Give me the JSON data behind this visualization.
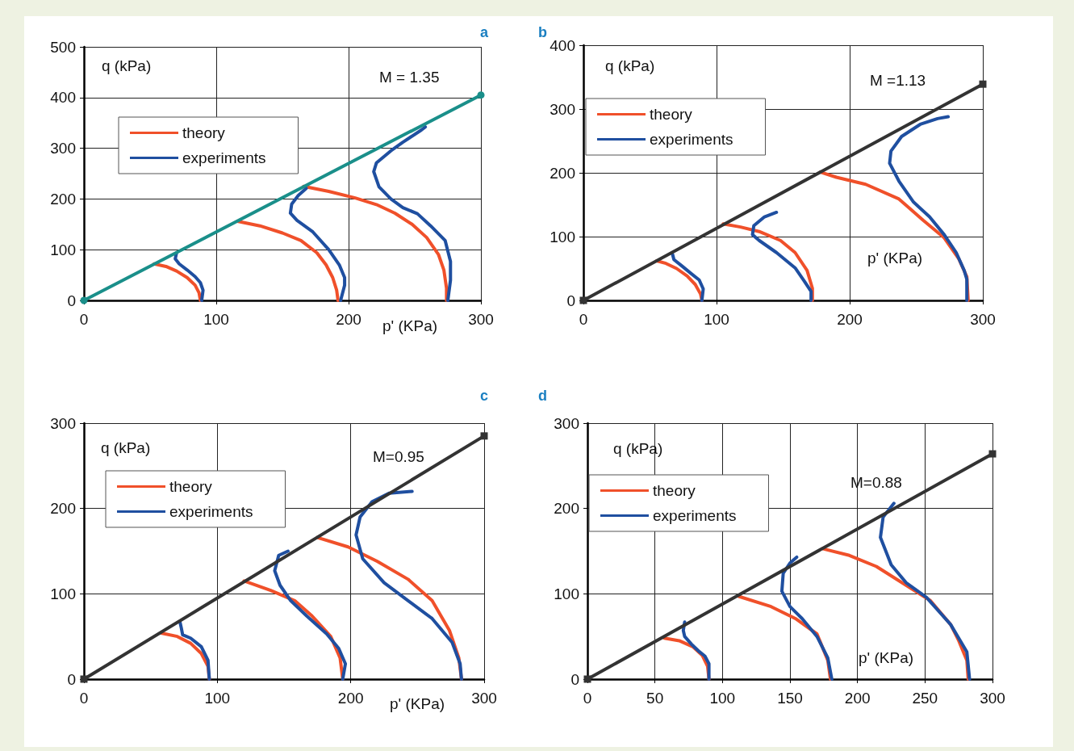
{
  "chart_data": [
    {
      "type": "line",
      "title": "a",
      "xlabel": "p' (KPa)",
      "ylabel": "q (kPa)",
      "annotations": [
        "M = 1.35"
      ],
      "xlim": [
        0,
        300
      ],
      "xticks": [
        0,
        100,
        200,
        300
      ],
      "ylim": [
        0,
        500
      ],
      "yticks": [
        0,
        100,
        200,
        300,
        400,
        500
      ],
      "grid": true,
      "legend": "top left",
      "marker": "none",
      "line_style": "solid",
      "series": [
        {
          "name": "theory",
          "color": "#f0502a",
          "x": [
            88,
            87,
            84,
            78,
            70,
            62,
            53,
            null,
            192,
            191,
            188,
            183,
            176,
            164,
            150,
            133,
            116,
            null,
            274,
            274,
            272,
            268,
            259,
            248,
            235,
            221,
            205,
            185,
            166
          ],
          "values": [
            0,
            15,
            30,
            45,
            58,
            67,
            72,
            null,
            0,
            20,
            45,
            70,
            94,
            118,
            133,
            147,
            156,
            null,
            0,
            24,
            60,
            90,
            124,
            150,
            172,
            189,
            202,
            215,
            225
          ]
        },
        {
          "name": "experiments",
          "color": "#1f4fa0",
          "x": [
            89,
            90,
            88,
            84,
            78,
            72,
            69,
            70,
            null,
            194,
            197,
            197,
            193,
            185,
            173,
            161,
            156,
            157,
            162,
            168,
            null,
            275,
            277,
            277,
            273,
            262,
            252,
            241,
            232,
            223,
            219,
            221,
            232,
            241,
            255,
            258
          ],
          "values": [
            0,
            20,
            35,
            47,
            60,
            72,
            82,
            94,
            null,
            0,
            30,
            45,
            70,
            100,
            135,
            158,
            172,
            190,
            207,
            221,
            null,
            0,
            40,
            77,
            118,
            147,
            171,
            183,
            200,
            224,
            254,
            271,
            295,
            312,
            336,
            342
          ]
        },
        {
          "color": "#1a8f8a",
          "x": [
            0,
            300
          ],
          "values": [
            0,
            405
          ],
          "marker": "circle"
        }
      ]
    },
    {
      "type": "line",
      "title": "b",
      "xlabel": "p' (KPa)",
      "ylabel": "q (kPa)",
      "annotations": [
        "M =1.13"
      ],
      "xlim": [
        0,
        300
      ],
      "xticks": [
        0,
        100,
        200,
        300
      ],
      "ylim": [
        0,
        400
      ],
      "yticks": [
        0,
        100,
        200,
        300,
        400
      ],
      "grid": true,
      "legend": "top left",
      "marker": "none",
      "line_style": "solid",
      "series": [
        {
          "name": "theory",
          "color": "#f0502a",
          "x": [
            89,
            88,
            84,
            78,
            70,
            62,
            55,
            null,
            172,
            172,
            168,
            159,
            148,
            132,
            118,
            105,
            null,
            289,
            288,
            282,
            271,
            255,
            237,
            212,
            190,
            178
          ],
          "values": [
            0,
            10,
            25,
            38,
            50,
            58,
            62,
            null,
            0,
            19,
            47,
            75,
            94,
            108,
            115,
            120,
            null,
            0,
            37,
            65,
            98,
            126,
            159,
            182,
            193,
            201
          ]
        },
        {
          "name": "experiments",
          "color": "#1f4fa0",
          "x": [
            89,
            90,
            87,
            81,
            74,
            68,
            67,
            null,
            171,
            171,
            166,
            159,
            145,
            132,
            127,
            128,
            136,
            145,
            null,
            288,
            288,
            286,
            280,
            271,
            260,
            248,
            237,
            230,
            231,
            239,
            253,
            266,
            274
          ],
          "values": [
            0,
            18,
            32,
            42,
            54,
            64,
            72,
            null,
            0,
            14,
            30,
            51,
            75,
            94,
            103,
            117,
            131,
            138,
            null,
            0,
            33,
            47,
            75,
            103,
            131,
            154,
            187,
            215,
            234,
            257,
            276,
            285,
            288
          ]
        },
        {
          "color": "#333333",
          "x": [
            0,
            300
          ],
          "values": [
            0,
            339
          ],
          "marker": "square"
        }
      ]
    },
    {
      "type": "line",
      "title": "c",
      "xlabel": "p' (KPa)",
      "ylabel": "q (kPa)",
      "annotations": [
        "M=0.95"
      ],
      "xlim": [
        0,
        300
      ],
      "xticks": [
        0,
        100,
        200,
        300
      ],
      "ylim": [
        0,
        300
      ],
      "yticks": [
        0,
        100,
        200,
        300
      ],
      "grid": true,
      "legend": "top left",
      "marker": "none",
      "line_style": "solid",
      "series": [
        {
          "name": "theory",
          "color": "#f0502a",
          "x": [
            94,
            93,
            88,
            80,
            70,
            58,
            null,
            194,
            192,
            185,
            171,
            158,
            140,
            120,
            null,
            283,
            281,
            274,
            261,
            243,
            220,
            198,
            175
          ],
          "values": [
            0,
            15,
            30,
            42,
            50,
            54,
            null,
            0,
            25,
            50,
            74,
            92,
            104,
            115,
            null,
            0,
            25,
            57,
            92,
            117,
            138,
            155,
            166
          ]
        },
        {
          "name": "experiments",
          "color": "#1f4fa0",
          "x": [
            94,
            93,
            88,
            80,
            74,
            73,
            72,
            null,
            194,
            196,
            191,
            182,
            167,
            155,
            147,
            143,
            146,
            153,
            null,
            283,
            282,
            276,
            261,
            243,
            225,
            209,
            204,
            207,
            216,
            229,
            246
          ],
          "values": [
            0,
            22,
            38,
            48,
            52,
            60,
            67,
            null,
            0,
            18,
            36,
            53,
            74,
            92,
            110,
            127,
            145,
            150,
            null,
            0,
            18,
            43,
            71,
            92,
            113,
            141,
            169,
            190,
            208,
            218,
            220
          ]
        },
        {
          "color": "#333333",
          "x": [
            0,
            300
          ],
          "values": [
            0,
            285
          ],
          "marker": "square"
        }
      ]
    },
    {
      "type": "line",
      "title": "d",
      "xlabel": "p' (KPa)",
      "ylabel": "q (kPa)",
      "annotations": [
        "M=0.88"
      ],
      "xlim": [
        0,
        300
      ],
      "xticks": [
        0,
        50,
        100,
        150,
        200,
        250,
        300
      ],
      "ylim": [
        0,
        300
      ],
      "yticks": [
        0,
        100,
        200,
        300
      ],
      "grid": true,
      "legend": "top left",
      "marker": "none",
      "line_style": "solid",
      "series": [
        {
          "name": "theory",
          "color": "#f0502a",
          "x": [
            90,
            89,
            85,
            78,
            68,
            57,
            null,
            180,
            178,
            170,
            154,
            136,
            112,
            null,
            282,
            281,
            275,
            269,
            254,
            236,
            214,
            194,
            174
          ],
          "values": [
            0,
            15,
            28,
            38,
            45,
            48,
            null,
            0,
            22,
            53,
            71,
            85,
            97,
            null,
            0,
            22,
            45,
            64,
            92,
            110,
            132,
            145,
            153
          ]
        },
        {
          "name": "experiments",
          "color": "#1f4fa0",
          "x": [
            90,
            90,
            87,
            83,
            77,
            72,
            71,
            72,
            null,
            181,
            178,
            170,
            159,
            150,
            144,
            145,
            150,
            155,
            null,
            283,
            281,
            269,
            251,
            236,
            225,
            217,
            219,
            227
          ],
          "values": [
            0,
            18,
            27,
            32,
            41,
            50,
            57,
            67,
            null,
            0,
            25,
            50,
            71,
            85,
            103,
            124,
            136,
            143,
            null,
            0,
            32,
            64,
            96,
            113,
            134,
            166,
            190,
            206
          ]
        },
        {
          "color": "#333333",
          "x": [
            0,
            300
          ],
          "values": [
            0,
            264
          ],
          "marker": "square"
        }
      ]
    }
  ]
}
